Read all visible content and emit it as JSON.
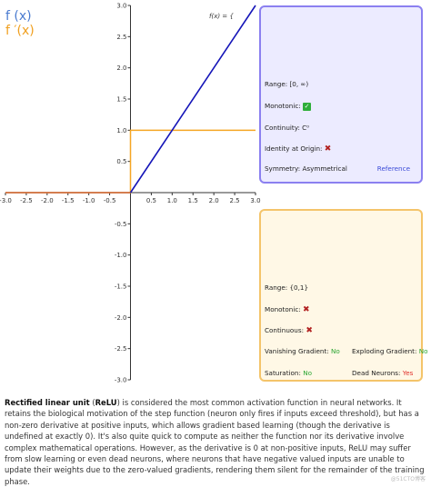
{
  "legend": {
    "f": "f (x)",
    "fprime": "f ′(x)"
  },
  "formula_label": "f(x) = {",
  "colors": {
    "f": "#1515b8",
    "fprime": "#f5a623",
    "zero_line": "#c8623a"
  },
  "chart_data": {
    "type": "line",
    "xlim": [
      -3.0,
      3.0
    ],
    "ylim": [
      -3.0,
      3.0
    ],
    "x_ticks": [
      "-3.0",
      "-2.5",
      "-2.0",
      "-1.5",
      "-1.0",
      "-0.5",
      "0.5",
      "1.0",
      "1.5",
      "2.0",
      "2.5",
      "3.0"
    ],
    "y_ticks": [
      "3.0",
      "2.5",
      "2.0",
      "1.5",
      "1.0",
      "0.5",
      "-0.5",
      "-1.0",
      "-1.5",
      "-2.0",
      "-2.5",
      "-3.0"
    ],
    "series": [
      {
        "name": "f (x)",
        "x": [
          -3.0,
          0.0,
          3.0
        ],
        "y": [
          0.0,
          0.0,
          3.0
        ]
      },
      {
        "name": "f ′(x)",
        "x": [
          -3.0,
          0.0,
          0.0,
          3.0
        ],
        "y": [
          0.0,
          0.0,
          1.0,
          1.0
        ]
      }
    ],
    "grid": false
  },
  "function_panel": {
    "range": "Range: [0, ∞)",
    "monotonic_label": "Monotonic:",
    "continuity": "Continuity: C⁰",
    "identity_label": "Identity at Origin:",
    "symmetry": "Symmetry: Asymmetrical",
    "reference": "Reference"
  },
  "derivative_panel": {
    "range": "Range: {0,1}",
    "monotonic_label": "Monotonic:",
    "continuous_label": "Continuous:",
    "vanishing_label": "Vanishing Gradient:",
    "vanishing_value": "No",
    "exploding_label": "Exploding Gradient:",
    "exploding_value": "No",
    "saturation_label": "Saturation:",
    "saturation_value": "No",
    "dead_label": "Dead Neurons:",
    "dead_value": "Yes"
  },
  "description": {
    "title": "Rectified linear unit",
    "abbrev": "ReLU",
    "text": "is considered the most common activation function in neural networks. It retains the biological motivation of the step function (neuron only fires if inputs exceed threshold), but has a non-zero derivative at positive inputs, which allows gradient based learning (though the derivative is undefined at exactly 0). It's also quite quick to compute as neither the function nor its derivative involve complex mathematical operations. However, as the derivative is 0 at non-positive inputs, ReLU may suffer from slow learning or even dead neurons, where neurons that have negative valued inputs are unable to update their weights due to the zero-valued gradients, rendering them silent for the remainder of the training phase."
  },
  "watermark": "@51CTO博客"
}
